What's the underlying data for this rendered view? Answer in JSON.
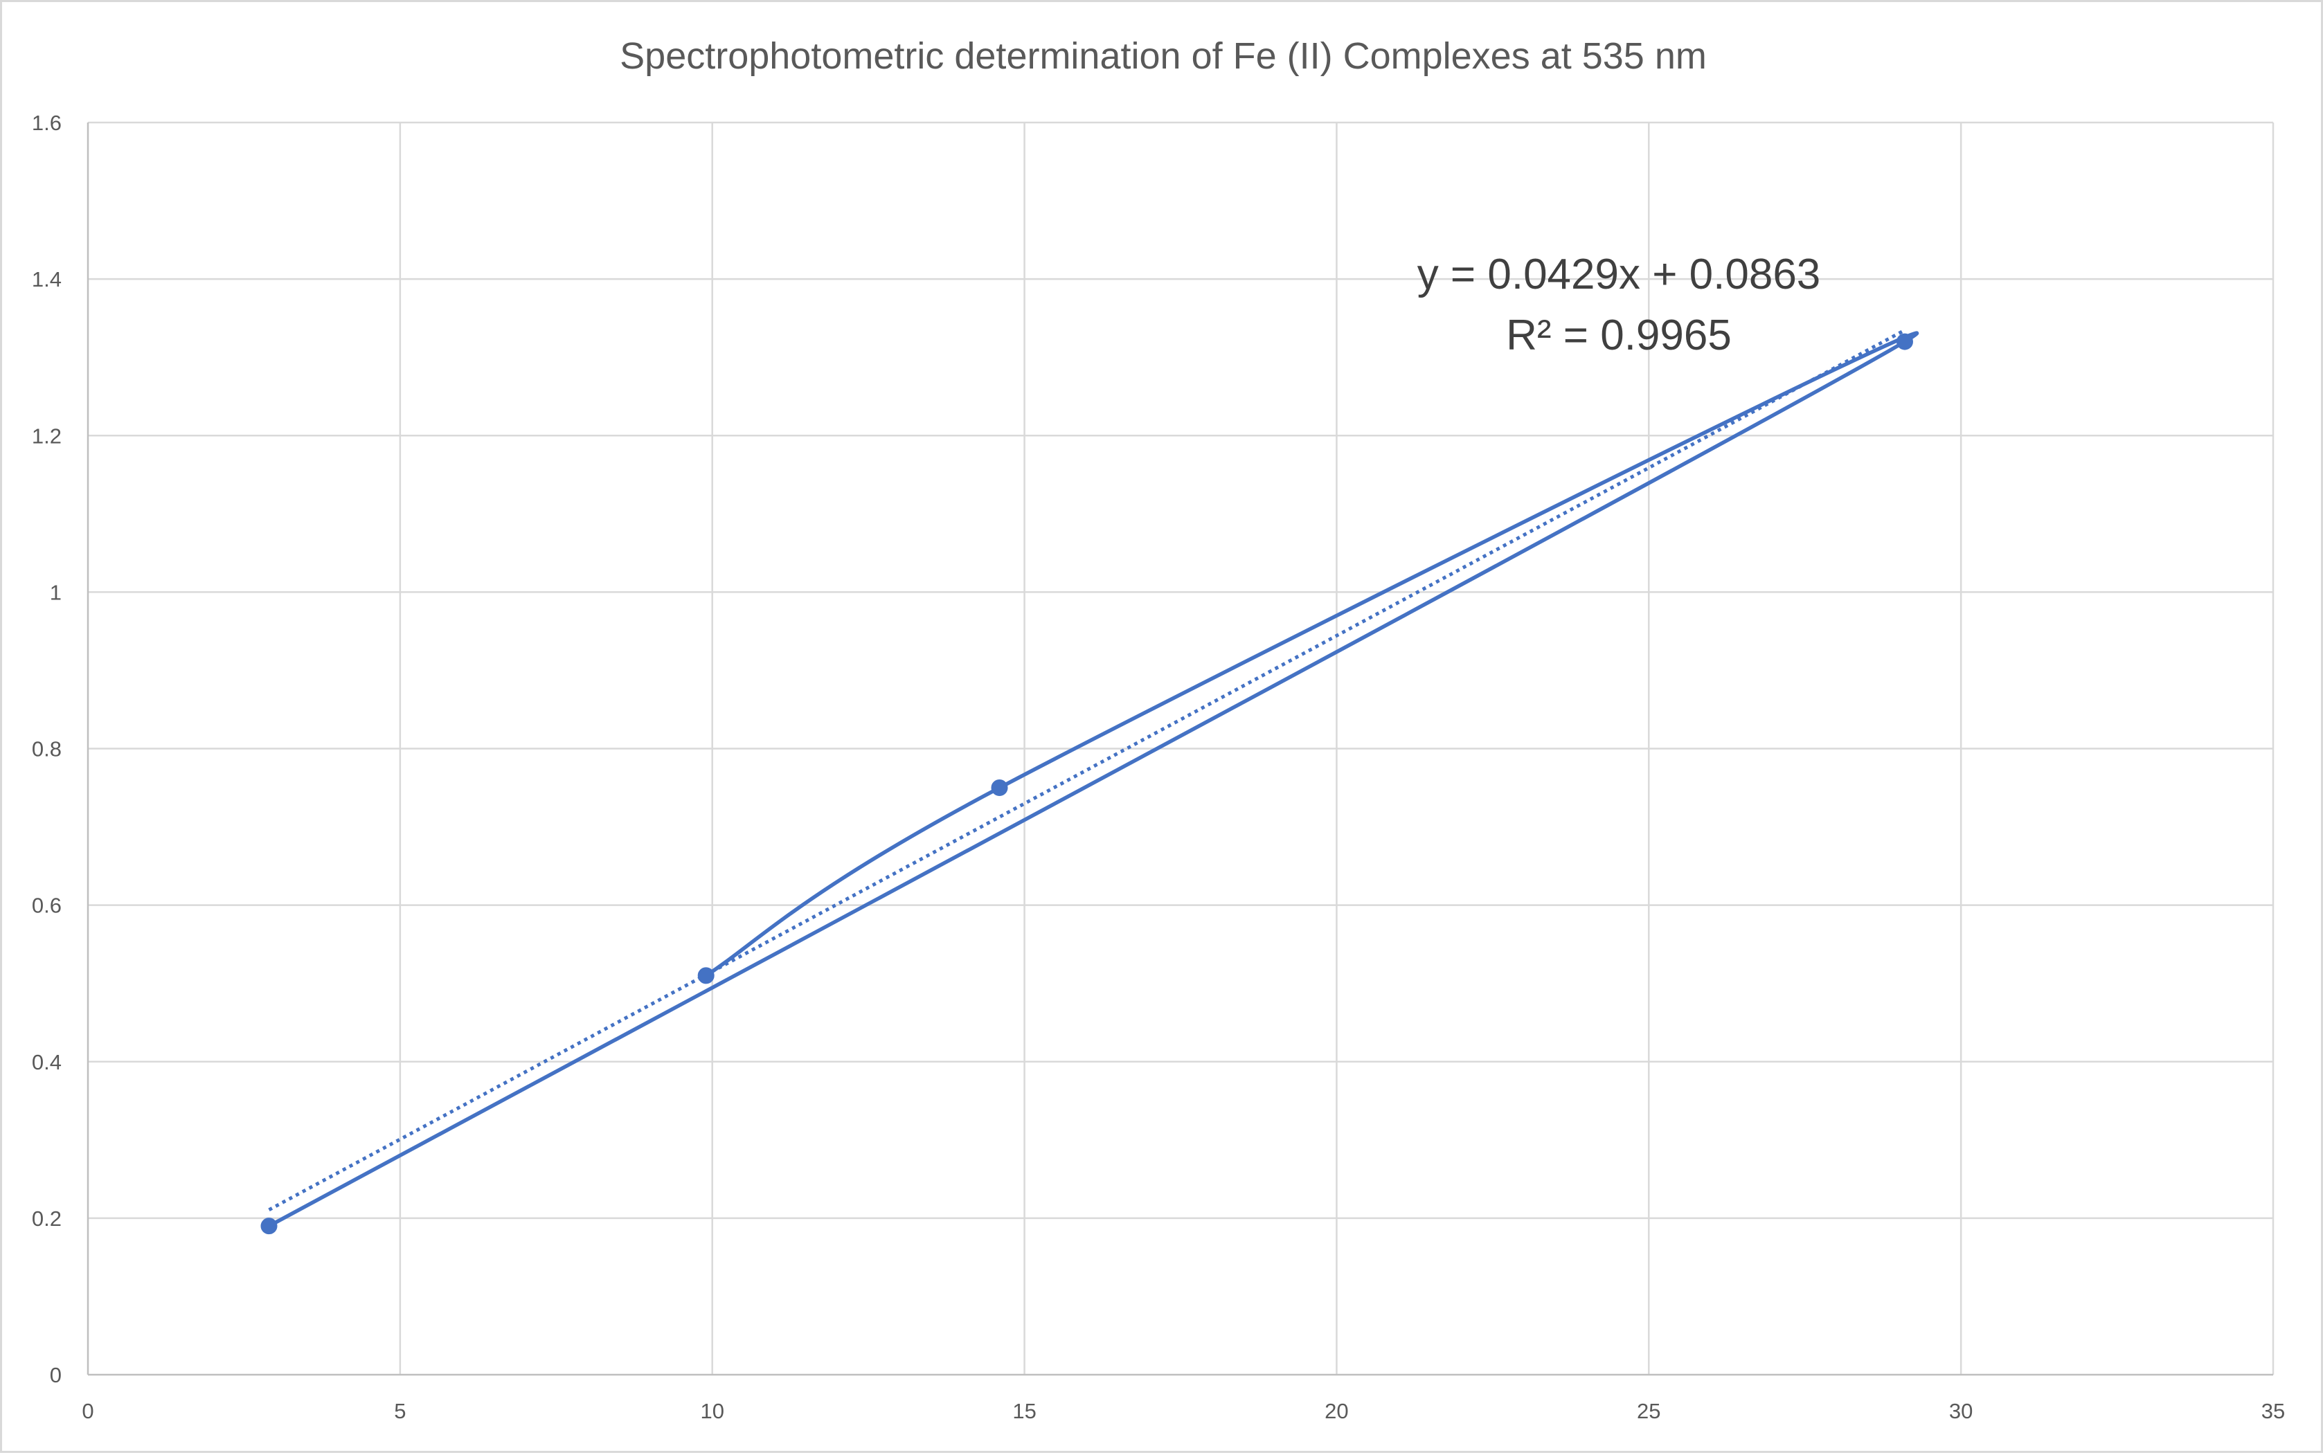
{
  "chart_data": {
    "type": "scatter",
    "title": "Spectrophotometric determination of Fe (II) Complexes at 535 nm",
    "xlabel": "",
    "ylabel": "",
    "xlim": [
      0,
      35
    ],
    "ylim": [
      0,
      1.6
    ],
    "x_ticks": [
      "0",
      "5",
      "10",
      "15",
      "20",
      "25",
      "30",
      "35"
    ],
    "y_ticks": [
      "0",
      "0.2",
      "0.4",
      "0.6",
      "0.8",
      "1",
      "1.2",
      "1.4",
      "1.6"
    ],
    "grid": true,
    "legend": "none",
    "series": [
      {
        "x": [
          2.9,
          29.1,
          14.6,
          9.9
        ],
        "y": [
          0.19,
          1.32,
          0.75,
          0.51
        ],
        "line": "smooth",
        "marker": "circle",
        "color": "#4472c4"
      }
    ],
    "trendline": {
      "type": "linear",
      "style": "dotted",
      "color": "#4472c4",
      "slope": 0.0429,
      "intercept": 0.0863,
      "x_range": [
        2.9,
        29.1
      ],
      "equation": "y = 0.0429x + 0.0863",
      "r_squared": "R² = 0.9965"
    }
  }
}
